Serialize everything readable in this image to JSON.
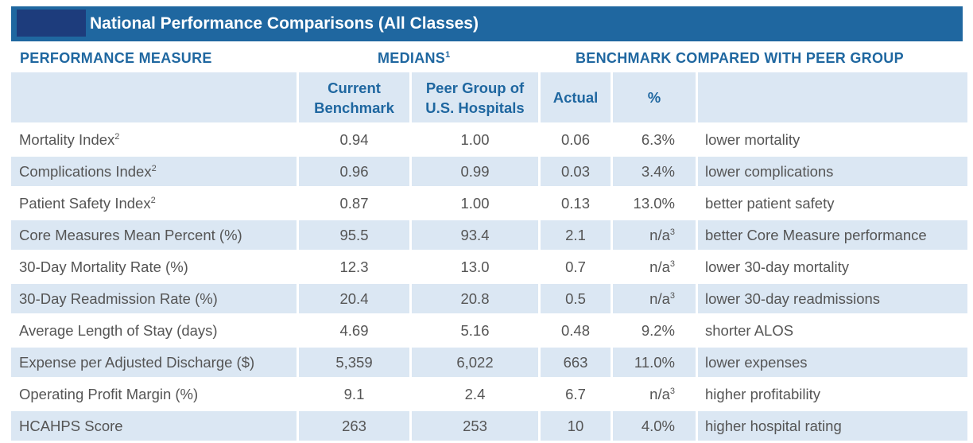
{
  "title": "National Performance Comparisons (All Classes)",
  "headers": {
    "measure": "PERFORMANCE MEASURE",
    "medians": "MEDIANS",
    "medians_note": "1",
    "benchmark": "BENCHMARK COMPARED WITH PEER GROUP"
  },
  "columns": {
    "current_line1": "Current",
    "current_line2": "Benchmark",
    "peer_line1": "Peer Group of",
    "peer_line2": "U.S. Hospitals",
    "actual": "Actual",
    "pct": "%"
  },
  "rows": [
    {
      "measure": "Mortality Index",
      "note": "2",
      "current": "0.94",
      "peer": "1.00",
      "actual": "0.06",
      "pct": "6.3%",
      "pct_note": "",
      "desc": "lower mortality"
    },
    {
      "measure": "Complications Index",
      "note": "2",
      "current": "0.96",
      "peer": "0.99",
      "actual": "0.03",
      "pct": "3.4%",
      "pct_note": "",
      "desc": "lower complications"
    },
    {
      "measure": "Patient Safety Index",
      "note": "2",
      "current": "0.87",
      "peer": "1.00",
      "actual": "0.13",
      "pct": "13.0%",
      "pct_note": "",
      "desc": "better patient safety"
    },
    {
      "measure": "Core Measures Mean Percent (%)",
      "note": "",
      "current": "95.5",
      "peer": "93.4",
      "actual": "2.1",
      "pct": "n/a",
      "pct_note": "3",
      "desc": "better Core Measure performance"
    },
    {
      "measure": "30-Day Mortality Rate (%)",
      "note": "",
      "current": "12.3",
      "peer": "13.0",
      "actual": "0.7",
      "pct": "n/a",
      "pct_note": "3",
      "desc": "lower 30-day mortality"
    },
    {
      "measure": "30-Day Readmission Rate (%)",
      "note": "",
      "current": "20.4",
      "peer": "20.8",
      "actual": "0.5",
      "pct": "n/a",
      "pct_note": "3",
      "desc": "lower 30-day readmissions"
    },
    {
      "measure": "Average Length of Stay (days)",
      "note": "",
      "current": "4.69",
      "peer": "5.16",
      "actual": "0.48",
      "pct": "9.2%",
      "pct_note": "",
      "desc": "shorter ALOS"
    },
    {
      "measure": "Expense per Adjusted Discharge ($)",
      "note": "",
      "current": "5,359",
      "peer": "6,022",
      "actual": "663",
      "pct": "11.0%",
      "pct_note": "",
      "desc": "lower expenses"
    },
    {
      "measure": "Operating Profit Margin (%)",
      "note": "",
      "current": "9.1",
      "peer": "2.4",
      "actual": "6.7",
      "pct": "n/a",
      "pct_note": "3",
      "desc": "higher profitability"
    },
    {
      "measure": "HCAHPS Score",
      "note": "",
      "current": "263",
      "peer": "253",
      "actual": "10",
      "pct": "4.0%",
      "pct_note": "",
      "desc": "higher hospital rating"
    }
  ],
  "colors": {
    "brand_blue": "#1f67a0",
    "row_tint": "#dbe7f3",
    "redaction": "#1d3c7c"
  }
}
